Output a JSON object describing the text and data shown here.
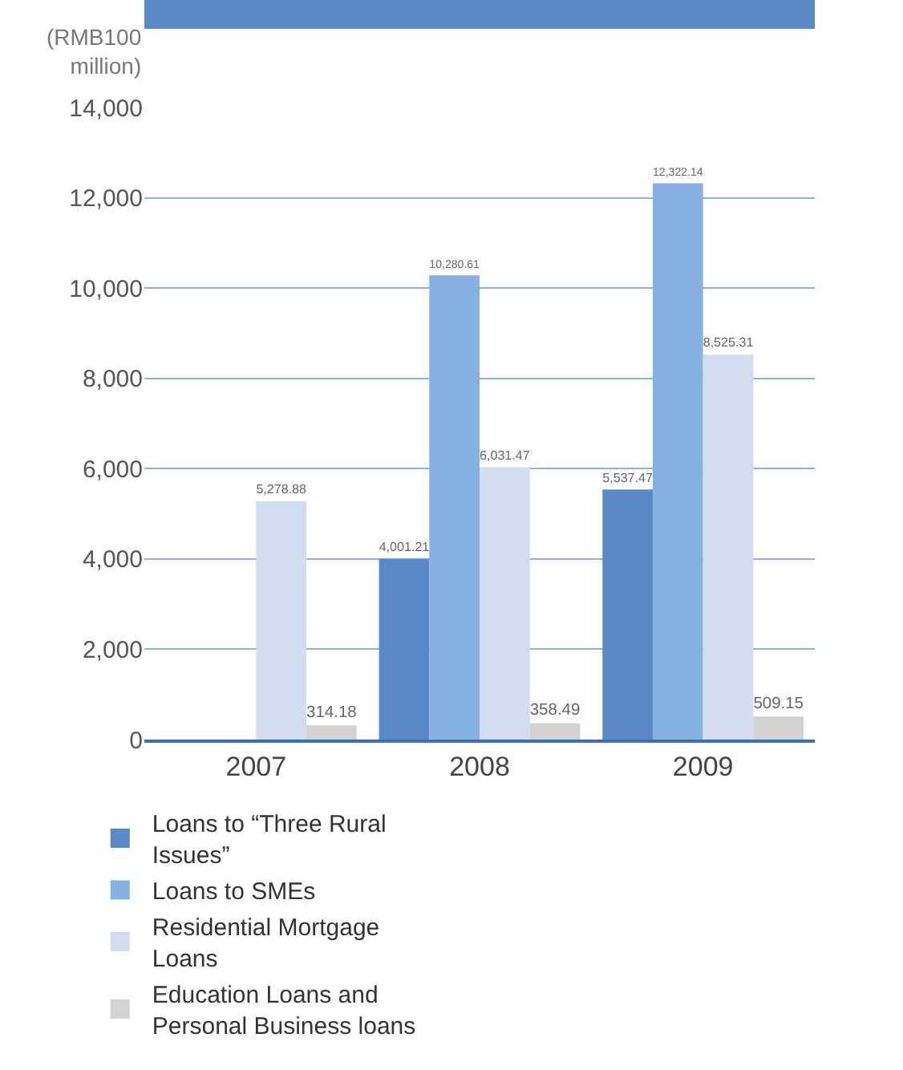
{
  "chart_data": {
    "type": "bar",
    "ylabel": "(RMB100 million)",
    "categories": [
      "2007",
      "2008",
      "2009"
    ],
    "series": [
      {
        "name": "Loans to “Three Rural Issues”",
        "color": "#5b88c6",
        "values": [
          null,
          4001.21,
          5537.47
        ],
        "value_labels": [
          null,
          "4,001.21",
          "5,537.47"
        ]
      },
      {
        "name": "Loans to SMEs",
        "color": "#86b1e0",
        "values": [
          null,
          10280.61,
          12322.14
        ],
        "value_labels": [
          null,
          "10,280.61",
          "12,322.14"
        ]
      },
      {
        "name": "Residential Mortgage Loans",
        "color": "#d2ddf0",
        "values": [
          5278.88,
          6031.47,
          8525.31
        ],
        "value_labels": [
          "5,278.88",
          "6,031.47",
          "8,525.31"
        ]
      },
      {
        "name": "Education Loans and Personal Business loans",
        "color": "#d2d2d2",
        "values": [
          314.18,
          358.49,
          509.15
        ],
        "value_labels": [
          "314.18",
          "358.49",
          "509.15"
        ]
      }
    ],
    "ylim": [
      0,
      14000
    ],
    "yticks": [
      {
        "value": 0,
        "label": "0"
      },
      {
        "value": 2000,
        "label": "2,000"
      },
      {
        "value": 4000,
        "label": "4,000"
      },
      {
        "value": 6000,
        "label": "6,000"
      },
      {
        "value": 8000,
        "label": "8,000"
      },
      {
        "value": 10000,
        "label": "10,000"
      },
      {
        "value": 12000,
        "label": "12,000"
      },
      {
        "value": 14000,
        "label": "14,000"
      }
    ],
    "grid": "y",
    "legend": "bottom"
  }
}
